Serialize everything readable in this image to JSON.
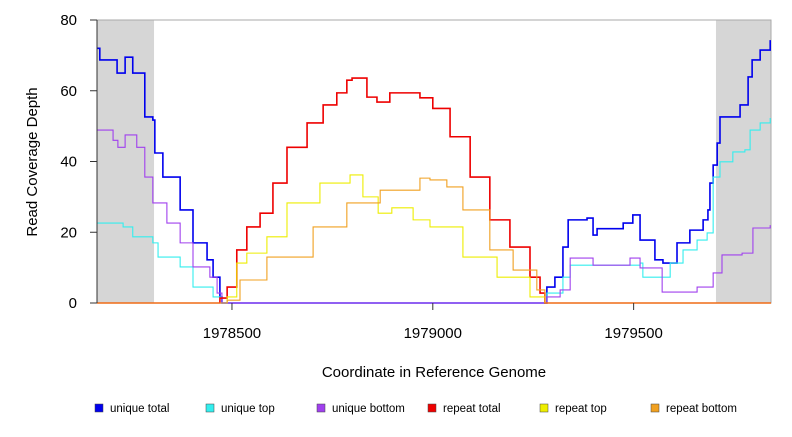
{
  "chart_data": {
    "type": "line",
    "title": "",
    "xlabel": "Coordinate in Reference Genome",
    "ylabel": "Read Coverage Depth",
    "xlim": [
      1978164,
      1979842
    ],
    "ylim": [
      0,
      80
    ],
    "xticks": [
      1978500,
      1979000,
      1979500
    ],
    "xtick_labels": [
      "1978500",
      "1979000",
      "1979500"
    ],
    "yticks": [
      0,
      20,
      40,
      60,
      80
    ],
    "ytick_labels": [
      "0",
      "20",
      "40",
      "60",
      "80"
    ],
    "grid": false,
    "legend_position": "bottom",
    "shaded_regions": [
      [
        1978164,
        1978306
      ],
      [
        1979705,
        1979842
      ]
    ],
    "shade_color": "#d6d6d6",
    "series": [
      {
        "name": "unique total",
        "color": "#0000ee",
        "x": [
          1978164,
          1978171,
          1978214,
          1978234,
          1978253,
          1978283,
          1978303,
          1978308,
          1978328,
          1978371,
          1978403,
          1978438,
          1978453,
          1978470,
          1978475,
          1979280,
          1979284,
          1979304,
          1979324,
          1979337,
          1979384,
          1979399,
          1979409,
          1979474,
          1979498,
          1979516,
          1979546,
          1979553,
          1979573,
          1979608,
          1979640,
          1979673,
          1979685,
          1979690,
          1979698,
          1979708,
          1979715,
          1979765,
          1979785,
          1979795,
          1979815,
          1979840
        ],
        "y": [
          72,
          68.7,
          65,
          69.5,
          65,
          52.6,
          51.7,
          42.4,
          35.6,
          26.3,
          17,
          12.2,
          7.3,
          1.7,
          0,
          0,
          4.5,
          7.3,
          15.8,
          23.5,
          24,
          19.2,
          21,
          22.6,
          24.9,
          17.8,
          17.8,
          12.2,
          11.3,
          17,
          20.6,
          23.5,
          26.3,
          33.9,
          39,
          45.2,
          52.6,
          56,
          63.9,
          68.7,
          71.5,
          74.3
        ]
      },
      {
        "name": "unique top",
        "color": "#33eeee",
        "x": [
          1978164,
          1978229,
          1978253,
          1978303,
          1978316,
          1978371,
          1978403,
          1978453,
          1978475,
          1979280,
          1979284,
          1979324,
          1979342,
          1979516,
          1979523,
          1979566,
          1979591,
          1979623,
          1979658,
          1979683,
          1979698,
          1979715,
          1979747,
          1979777,
          1979790,
          1979815,
          1979840
        ],
        "y": [
          22.6,
          21.5,
          18.7,
          17,
          13,
          10.2,
          4.5,
          1.7,
          0,
          0,
          2.8,
          7.3,
          10.7,
          11.3,
          7.3,
          7.3,
          11.3,
          15,
          17.8,
          19.8,
          35.6,
          39.9,
          42.7,
          43.3,
          48.9,
          50.9,
          52.3
        ]
      },
      {
        "name": "unique bottom",
        "color": "#a040ee",
        "x": [
          1978164,
          1978204,
          1978216,
          1978234,
          1978263,
          1978283,
          1978303,
          1978338,
          1978371,
          1978403,
          1978445,
          1978463,
          1978475,
          1979280,
          1979284,
          1979317,
          1979342,
          1979384,
          1979399,
          1979491,
          1979516,
          1979546,
          1979571,
          1979658,
          1979698,
          1979720,
          1979770,
          1979797,
          1979840
        ],
        "y": [
          48.9,
          46,
          44,
          47.5,
          44,
          35.6,
          28.3,
          22.6,
          17,
          10.2,
          7.3,
          2.8,
          0,
          0,
          1.7,
          3.7,
          12.7,
          12.7,
          10.7,
          12.7,
          9.9,
          9.9,
          3.1,
          4.5,
          8.5,
          13.6,
          14.1,
          21.2,
          22
        ]
      },
      {
        "name": "repeat total",
        "color": "#ee0000",
        "x": [
          1978164,
          1978470,
          1978488,
          1978512,
          1978537,
          1978570,
          1978602,
          1978637,
          1978687,
          1978727,
          1978761,
          1978786,
          1978799,
          1978836,
          1978861,
          1978893,
          1978968,
          1979000,
          1979043,
          1979093,
          1979142,
          1979192,
          1979242,
          1979267,
          1979279,
          1979842
        ],
        "y": [
          0,
          1.4,
          4.5,
          15,
          21.5,
          25.4,
          33.9,
          44,
          50.9,
          56,
          59.4,
          63,
          63.6,
          58.2,
          56.8,
          59.4,
          58,
          55,
          47,
          35.6,
          23.5,
          15.8,
          7.3,
          2.8,
          0,
          0
        ]
      },
      {
        "name": "repeat top",
        "color": "#eeee00",
        "x": [
          1978164,
          1978475,
          1978488,
          1978512,
          1978537,
          1978587,
          1978637,
          1978719,
          1978794,
          1978826,
          1978864,
          1978898,
          1978951,
          1978993,
          1979075,
          1979160,
          1979242,
          1979279,
          1979842
        ],
        "y": [
          0,
          0,
          1.7,
          11.3,
          14.1,
          18.7,
          28.3,
          33.9,
          36.2,
          30,
          25.4,
          26.9,
          23.5,
          21.5,
          13,
          7.3,
          1.7,
          0,
          0
        ]
      },
      {
        "name": "repeat bottom",
        "color": "#f0a020",
        "x": [
          1978164,
          1978475,
          1978488,
          1978520,
          1978587,
          1978702,
          1978786,
          1978869,
          1978968,
          1978993,
          1979035,
          1979075,
          1979142,
          1979200,
          1979259,
          1979279,
          1979842
        ],
        "y": [
          0,
          0,
          0.8,
          6.5,
          13,
          21.5,
          28.3,
          31.9,
          35.3,
          34.8,
          32.8,
          26.3,
          15,
          9.3,
          3.7,
          0,
          0
        ]
      }
    ]
  }
}
